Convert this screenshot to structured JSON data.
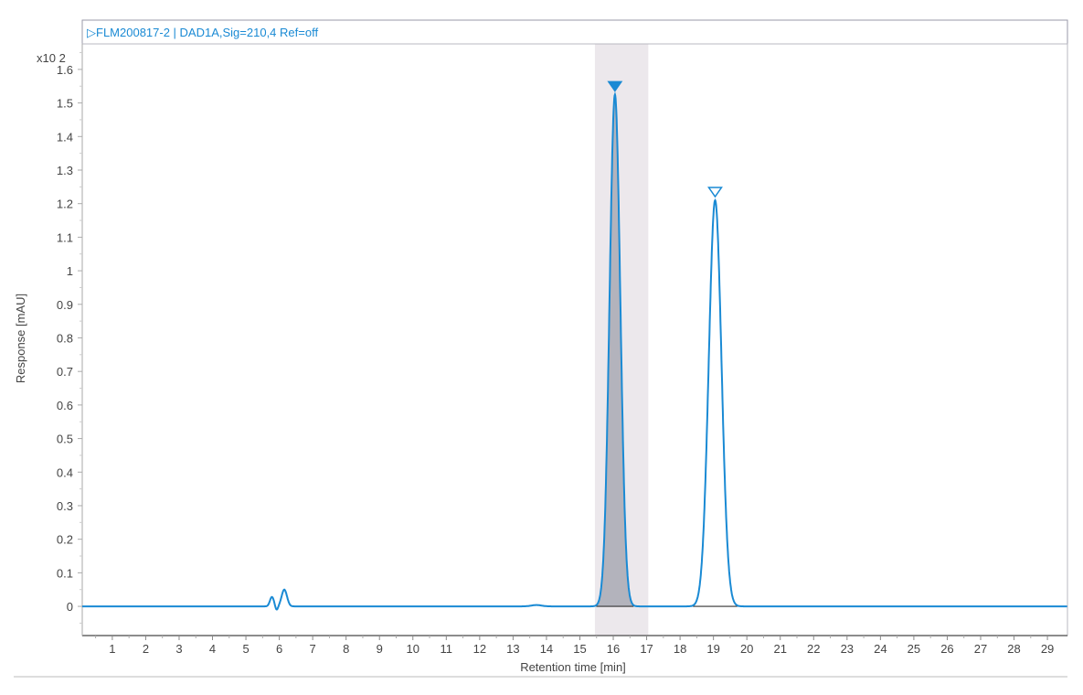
{
  "header": {
    "title": "▷FLM200817-2 | DAD1A,Sig=210,4  Ref=off"
  },
  "chart_data": {
    "type": "line",
    "title": "",
    "xlabel": "Retention time [min]",
    "ylabel": "Response [mAU]",
    "y_multiplier": "x10 2",
    "xlim": [
      0.1,
      29.6
    ],
    "ylim": [
      -0.087,
      1.676
    ],
    "x_ticks": [
      1,
      2,
      3,
      4,
      5,
      6,
      7,
      8,
      9,
      10,
      11,
      12,
      13,
      14,
      15,
      16,
      17,
      18,
      19,
      20,
      21,
      22,
      23,
      24,
      25,
      26,
      27,
      28,
      29
    ],
    "y_ticks": [
      "0",
      "0.1",
      "0.2",
      "0.3",
      "0.4",
      "0.5",
      "0.6",
      "0.7",
      "0.8",
      "0.9",
      "1",
      "1.1",
      "1.2",
      "1.3",
      "1.4",
      "1.5",
      "1.6"
    ],
    "grid": false,
    "peaks": [
      {
        "rt": 5.78,
        "height": 0.028,
        "sigma": 0.06
      },
      {
        "rt": 5.92,
        "height": -0.012,
        "sigma": 0.04
      },
      {
        "rt": 6.15,
        "height": 0.05,
        "sigma": 0.08
      },
      {
        "rt": 13.7,
        "height": 0.004,
        "sigma": 0.15
      },
      {
        "rt": 16.05,
        "height": 1.525,
        "sigma": 0.16,
        "marker": "filled",
        "integrated": true
      },
      {
        "rt": 19.05,
        "height": 1.21,
        "sigma": 0.19,
        "marker": "open",
        "integrated": true
      }
    ],
    "highlight_range": [
      15.45,
      17.05
    ],
    "colors": {
      "trace": "#1a8ad4",
      "fill": "#a9a9b4",
      "highlight": "#ece8ec",
      "axis": "#666666"
    }
  }
}
